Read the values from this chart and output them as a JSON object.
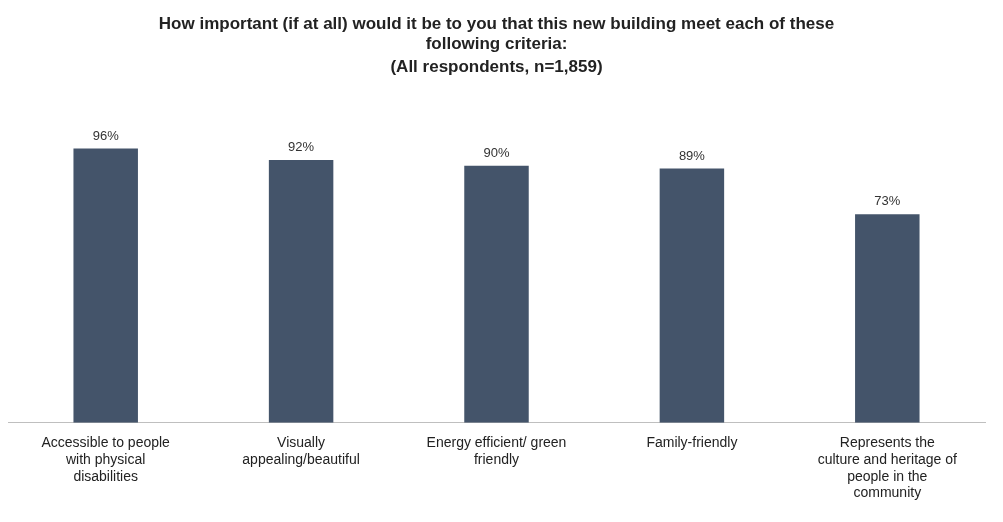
{
  "chart_data": {
    "type": "bar",
    "title": "How important (if at all) would it be to you that this new building meet each of these following criteria:",
    "subtitle": "(All respondents, n=1,859)",
    "categories": [
      "Accessible to people with physical disabilities",
      "Visually appealing/beautiful",
      "Energy efficient/ green friendly",
      "Family-friendly",
      "Represents the culture and heritage of people in the community"
    ],
    "values": [
      96,
      92,
      90,
      89,
      73
    ],
    "value_labels": [
      "96%",
      "92%",
      "90%",
      "89%",
      "73%"
    ],
    "color": "#44546a",
    "tick_labels": "x",
    "grid": false,
    "legend": false
  }
}
